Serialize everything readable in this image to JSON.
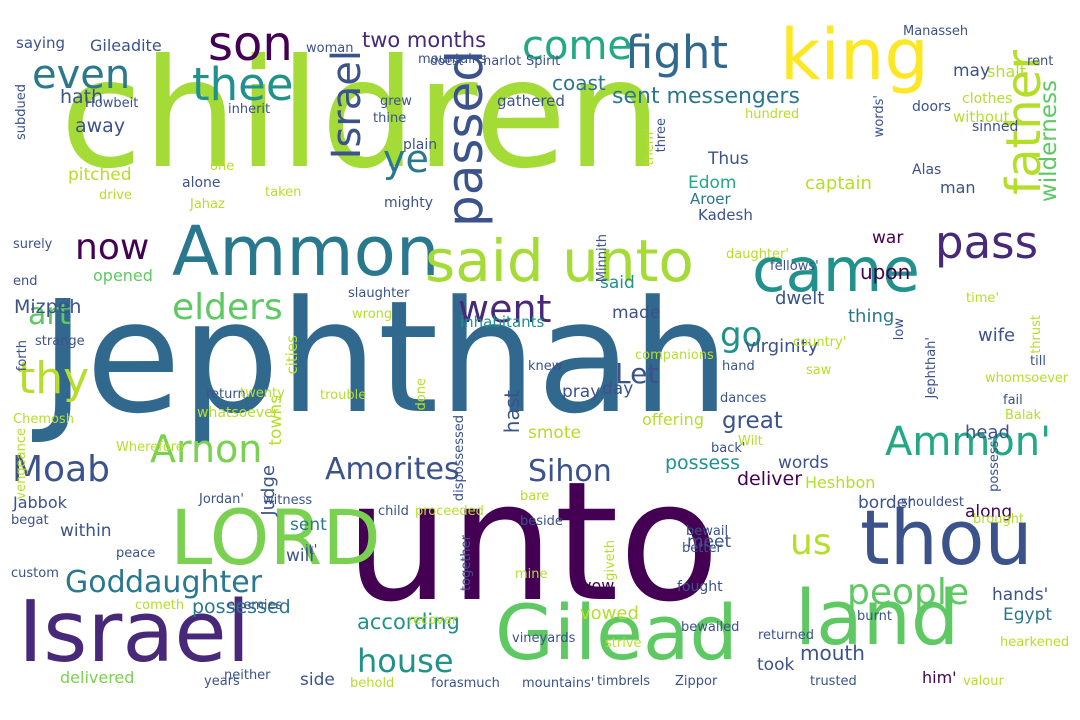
{
  "colors": {
    "background": "#ffffff",
    "palette": [
      "#440154",
      "#3b528b",
      "#21918c",
      "#5ec962",
      "#b5de2b",
      "#fde725",
      "#31688e",
      "#482878"
    ]
  },
  "words": [
    {
      "text": "children",
      "color": "#a5db36"
    },
    {
      "text": "Jephthah",
      "color": "#31688e"
    },
    {
      "text": "unto",
      "color": "#440154"
    },
    {
      "text": "Israel",
      "color": "#482878"
    },
    {
      "text": "Gilead",
      "color": "#5ec962"
    },
    {
      "text": "land",
      "color": "#5ec962"
    },
    {
      "text": "thou",
      "color": "#3b528b"
    },
    {
      "text": "LORD",
      "color": "#7ad151"
    },
    {
      "text": "Ammon",
      "color": "#2a788e"
    },
    {
      "text": "king",
      "color": "#fde725"
    },
    {
      "text": "came",
      "color": "#21918c"
    },
    {
      "text": "said unto",
      "color": "#a5db36"
    },
    {
      "text": "son",
      "color": "#440154"
    },
    {
      "text": "fight",
      "color": "#31688e"
    },
    {
      "text": "father",
      "color": "#b5de2b"
    },
    {
      "text": "pass",
      "color": "#482878"
    },
    {
      "text": "Ammon'",
      "color": "#22a884"
    },
    {
      "text": "God",
      "color": "#2a788e"
    },
    {
      "text": "daughter",
      "color": "#2a788e"
    },
    {
      "text": "elders",
      "color": "#5ec962"
    },
    {
      "text": "thee",
      "color": "#21918c"
    },
    {
      "text": "even",
      "color": "#2a788e"
    },
    {
      "text": "passed",
      "color": "#3b528b"
    },
    {
      "text": "thy",
      "color": "#b5de2b"
    },
    {
      "text": "Israel",
      "color": "#3b528b"
    },
    {
      "text": "Arnon",
      "color": "#7ad151"
    },
    {
      "text": "Moab",
      "color": "#3b528b"
    },
    {
      "text": "come",
      "color": "#22a884"
    },
    {
      "text": "now",
      "color": "#440154"
    },
    {
      "text": "ye",
      "color": "#2a788e"
    },
    {
      "text": "went",
      "color": "#482878"
    },
    {
      "text": "people",
      "color": "#5ec962"
    },
    {
      "text": "us",
      "color": "#b5de2b"
    },
    {
      "text": "house",
      "color": "#21918c"
    },
    {
      "text": "Amorites",
      "color": "#3b528b"
    },
    {
      "text": "Sihon",
      "color": "#3b528b"
    },
    {
      "text": "art",
      "color": "#5ec962"
    },
    {
      "text": "go",
      "color": "#21918c"
    },
    {
      "text": "Let",
      "color": "#3b528b"
    },
    {
      "text": "sent messengers",
      "color": "#2a788e"
    },
    {
      "text": "two months",
      "color": "#482878"
    },
    {
      "text": "coast",
      "color": "#2a788e"
    },
    {
      "text": "gathered",
      "color": "#3b528b"
    },
    {
      "text": "wilderness",
      "color": "#5ec962"
    },
    {
      "text": "mouth",
      "color": "#3b528b"
    },
    {
      "text": "according",
      "color": "#21918c"
    },
    {
      "text": "Mizpeh",
      "color": "#3b528b"
    },
    {
      "text": "possess",
      "color": "#21918c"
    },
    {
      "text": "possessed",
      "color": "#2a788e"
    },
    {
      "text": "virginity",
      "color": "#3b528b"
    },
    {
      "text": "deliver",
      "color": "#440154"
    },
    {
      "text": "delivered",
      "color": "#7ad151"
    },
    {
      "text": "inhabitants",
      "color": "#21918c"
    },
    {
      "text": "captain",
      "color": "#b5de2b"
    },
    {
      "text": "Edom",
      "color": "#22a884"
    },
    {
      "text": "Aroer",
      "color": "#2a788e"
    },
    {
      "text": "Kadesh",
      "color": "#3b528b"
    },
    {
      "text": "Heshbon",
      "color": "#b5de2b"
    },
    {
      "text": "Gileadite",
      "color": "#3b528b"
    },
    {
      "text": "saying",
      "color": "#3b528b"
    },
    {
      "text": "hath",
      "color": "#3b528b"
    },
    {
      "text": "away",
      "color": "#3b528b"
    },
    {
      "text": "pitched",
      "color": "#b5de2b"
    },
    {
      "text": "opened",
      "color": "#5ec962"
    },
    {
      "text": "Judge",
      "color": "#3b528b"
    },
    {
      "text": "war",
      "color": "#440154"
    },
    {
      "text": "upon",
      "color": "#440154"
    },
    {
      "text": "dwelt",
      "color": "#3b528b"
    },
    {
      "text": "wife",
      "color": "#3b528b"
    },
    {
      "text": "thing",
      "color": "#2a788e"
    },
    {
      "text": "made",
      "color": "#3b528b"
    },
    {
      "text": "said",
      "color": "#21918c"
    },
    {
      "text": "hast",
      "color": "#3b528b"
    },
    {
      "text": "pray",
      "color": "#3b528b"
    },
    {
      "text": "day",
      "color": "#3b528b"
    },
    {
      "text": "smote",
      "color": "#b5de2b"
    },
    {
      "text": "great",
      "color": "#3b528b"
    },
    {
      "text": "offering",
      "color": "#b5de2b"
    },
    {
      "text": "words",
      "color": "#3b528b"
    },
    {
      "text": "border",
      "color": "#3b528b"
    },
    {
      "text": "along",
      "color": "#440154"
    },
    {
      "text": "head",
      "color": "#3b528b"
    },
    {
      "text": "sent",
      "color": "#2a788e"
    },
    {
      "text": "within",
      "color": "#3b528b"
    },
    {
      "text": "will",
      "color": "#3b528b"
    },
    {
      "text": "meet",
      "color": "#3b528b"
    },
    {
      "text": "vow",
      "color": "#440154"
    },
    {
      "text": "vowed",
      "color": "#b5de2b"
    },
    {
      "text": "took",
      "color": "#3b528b"
    },
    {
      "text": "side",
      "color": "#3b528b"
    },
    {
      "text": "hands'",
      "color": "#3b528b"
    },
    {
      "text": "Egypt",
      "color": "#2a788e"
    },
    {
      "text": "man",
      "color": "#3b528b"
    },
    {
      "text": "Thus",
      "color": "#3b528b"
    },
    {
      "text": "towns",
      "color": "#b5de2b"
    },
    {
      "text": "cities",
      "color": "#b5de2b"
    },
    {
      "text": "Jabbok",
      "color": "#3b528b"
    },
    {
      "text": "him'",
      "color": "#440154"
    },
    {
      "text": "shalt",
      "color": "#b5de2b"
    },
    {
      "text": "may",
      "color": "#3b528b"
    },
    {
      "text": "Manasseh",
      "color": "#3b528b"
    },
    {
      "text": "rent",
      "color": "#3b528b"
    },
    {
      "text": "clothes",
      "color": "#b5de2b"
    },
    {
      "text": "doors",
      "color": "#3b528b"
    },
    {
      "text": "without",
      "color": "#b5de2b"
    },
    {
      "text": "sinned",
      "color": "#3b528b"
    },
    {
      "text": "Alas",
      "color": "#3b528b"
    },
    {
      "text": "mountains",
      "color": "#3b528b"
    },
    {
      "text": "harlot",
      "color": "#3b528b"
    },
    {
      "text": "Spirit",
      "color": "#3b528b"
    },
    {
      "text": "doest",
      "color": "#3b528b"
    },
    {
      "text": "woman",
      "color": "#3b528b"
    },
    {
      "text": "Howbeit",
      "color": "#3b528b"
    },
    {
      "text": "inherit",
      "color": "#3b528b"
    },
    {
      "text": "grew",
      "color": "#3b528b"
    },
    {
      "text": "thine",
      "color": "#3b528b"
    },
    {
      "text": "plain",
      "color": "#3b528b"
    },
    {
      "text": "one",
      "color": "#b5de2b"
    },
    {
      "text": "alone",
      "color": "#3b528b"
    },
    {
      "text": "drive",
      "color": "#b5de2b"
    },
    {
      "text": "taken",
      "color": "#b5de2b"
    },
    {
      "text": "Jahaz",
      "color": "#b5de2b"
    },
    {
      "text": "mighty",
      "color": "#3b528b"
    },
    {
      "text": "surely",
      "color": "#3b528b"
    },
    {
      "text": "slaughter",
      "color": "#3b528b"
    },
    {
      "text": "wrong",
      "color": "#b5de2b"
    },
    {
      "text": "strange",
      "color": "#3b528b"
    },
    {
      "text": "Chemosh",
      "color": "#b5de2b"
    },
    {
      "text": "vengeance",
      "color": "#b5de2b"
    },
    {
      "text": "whatsoever",
      "color": "#b5de2b"
    },
    {
      "text": "return",
      "color": "#3b528b"
    },
    {
      "text": "Wherefore",
      "color": "#b5de2b"
    },
    {
      "text": "Jordan'",
      "color": "#3b528b"
    },
    {
      "text": "witness",
      "color": "#3b528b"
    },
    {
      "text": "begat",
      "color": "#3b528b"
    },
    {
      "text": "peace",
      "color": "#3b528b"
    },
    {
      "text": "custom",
      "color": "#3b528b"
    },
    {
      "text": "cometh",
      "color": "#b5de2b"
    },
    {
      "text": "enemies",
      "color": "#3b528b"
    },
    {
      "text": "it'",
      "color": "#3b528b"
    },
    {
      "text": "years",
      "color": "#3b528b"
    },
    {
      "text": "neither",
      "color": "#3b528b"
    },
    {
      "text": "behold",
      "color": "#b5de2b"
    },
    {
      "text": "forasmuch",
      "color": "#3b528b"
    },
    {
      "text": "mountains'",
      "color": "#3b528b"
    },
    {
      "text": "timbrels",
      "color": "#3b528b"
    },
    {
      "text": "Zippor",
      "color": "#3b528b"
    },
    {
      "text": "recover",
      "color": "#b5de2b"
    },
    {
      "text": "strive",
      "color": "#b5de2b"
    },
    {
      "text": "bewailed",
      "color": "#3b528b"
    },
    {
      "text": "returned",
      "color": "#3b528b"
    },
    {
      "text": "fought",
      "color": "#3b528b"
    },
    {
      "text": "better",
      "color": "#3b528b"
    },
    {
      "text": "bewail",
      "color": "#3b528b"
    },
    {
      "text": "mine",
      "color": "#b5de2b"
    },
    {
      "text": "giveth",
      "color": "#b5de2b"
    },
    {
      "text": "together",
      "color": "#3b528b"
    },
    {
      "text": "proceeded",
      "color": "#b5de2b"
    },
    {
      "text": "child",
      "color": "#3b528b"
    },
    {
      "text": "burnt",
      "color": "#3b528b"
    },
    {
      "text": "trusted",
      "color": "#3b528b"
    },
    {
      "text": "hearkened",
      "color": "#b5de2b"
    },
    {
      "text": "valour",
      "color": "#b5de2b"
    },
    {
      "text": "brought",
      "color": "#b5de2b"
    },
    {
      "text": "shouldest",
      "color": "#3b528b"
    },
    {
      "text": "possess'",
      "color": "#3b528b"
    },
    {
      "text": "whomsoever",
      "color": "#b5de2b"
    },
    {
      "text": "Balak",
      "color": "#b5de2b"
    },
    {
      "text": "fail",
      "color": "#3b528b"
    },
    {
      "text": "thrust",
      "color": "#b5de2b"
    },
    {
      "text": "till",
      "color": "#3b528b"
    },
    {
      "text": "time'",
      "color": "#b5de2b"
    },
    {
      "text": "words'",
      "color": "#3b528b"
    },
    {
      "text": "hundred",
      "color": "#b5de2b"
    },
    {
      "text": "three",
      "color": "#3b528b"
    },
    {
      "text": "them'",
      "color": "#b5de2b"
    },
    {
      "text": "daughter'",
      "color": "#b5de2b"
    },
    {
      "text": "fellows'",
      "color": "#3b528b"
    },
    {
      "text": "Minnith",
      "color": "#3b528b"
    },
    {
      "text": "back'",
      "color": "#3b528b"
    },
    {
      "text": "country'",
      "color": "#b5de2b"
    },
    {
      "text": "hand",
      "color": "#3b528b"
    },
    {
      "text": "Wilt",
      "color": "#b5de2b"
    },
    {
      "text": "saw",
      "color": "#b5de2b"
    },
    {
      "text": "low",
      "color": "#3b528b"
    },
    {
      "text": "Jephthah'",
      "color": "#3b528b"
    },
    {
      "text": "companions",
      "color": "#b5de2b"
    },
    {
      "text": "dispossessed",
      "color": "#3b528b"
    },
    {
      "text": "dances",
      "color": "#3b528b"
    },
    {
      "text": "knew",
      "color": "#3b528b"
    },
    {
      "text": "bare",
      "color": "#b5de2b"
    },
    {
      "text": "beside",
      "color": "#3b528b"
    },
    {
      "text": "done",
      "color": "#b5de2b"
    },
    {
      "text": "trouble",
      "color": "#b5de2b"
    },
    {
      "text": "twenty",
      "color": "#b5de2b"
    },
    {
      "text": "forth",
      "color": "#3b528b"
    },
    {
      "text": "end",
      "color": "#3b528b"
    },
    {
      "text": "subdued",
      "color": "#3b528b"
    },
    {
      "text": "vineyards",
      "color": "#3b528b"
    },
    {
      "text": "offer",
      "color": "#3b528b"
    }
  ]
}
